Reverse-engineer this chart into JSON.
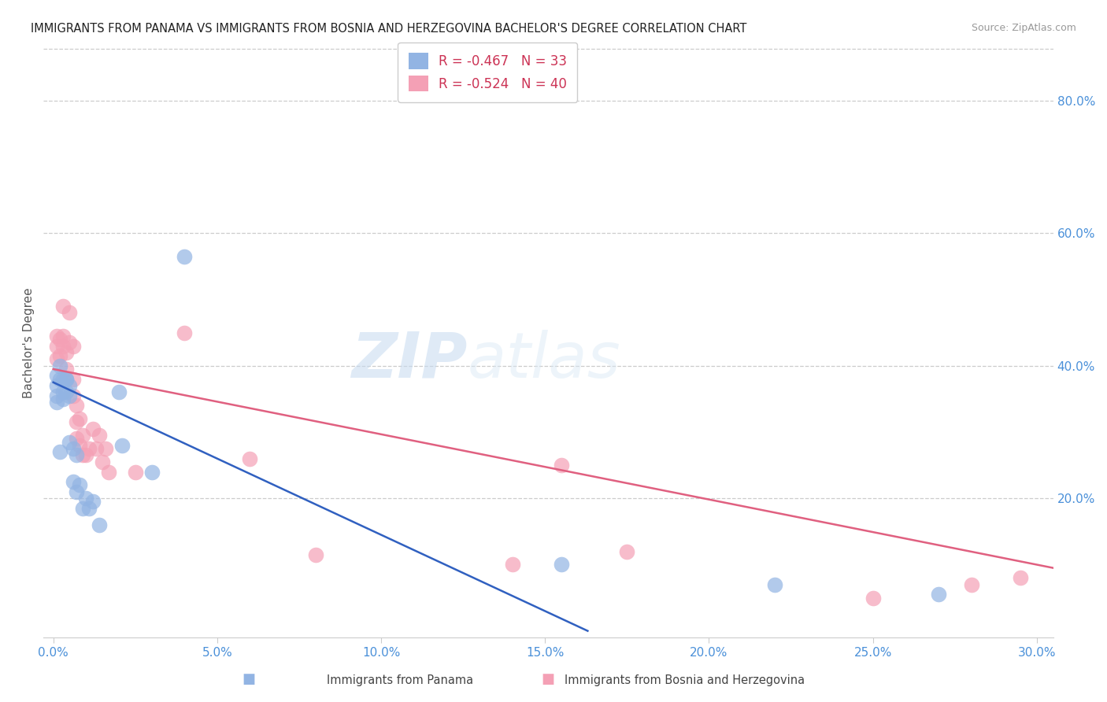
{
  "title": "IMMIGRANTS FROM PANAMA VS IMMIGRANTS FROM BOSNIA AND HERZEGOVINA BACHELOR'S DEGREE CORRELATION CHART",
  "source": "Source: ZipAtlas.com",
  "ylabel": "Bachelor's Degree",
  "right_ytick_labels": [
    "20.0%",
    "40.0%",
    "60.0%",
    "80.0%"
  ],
  "right_ytick_values": [
    0.2,
    0.4,
    0.6,
    0.8
  ],
  "bottom_xtick_labels": [
    "0.0%",
    "5.0%",
    "10.0%",
    "15.0%",
    "20.0%",
    "25.0%",
    "30.0%"
  ],
  "bottom_xtick_values": [
    0.0,
    0.05,
    0.1,
    0.15,
    0.2,
    0.25,
    0.3
  ],
  "xlim": [
    -0.003,
    0.305
  ],
  "ylim": [
    -0.01,
    0.88
  ],
  "panama_color": "#92b4e3",
  "bosnia_color": "#f4a0b5",
  "panama_line_color": "#3060c0",
  "bosnia_line_color": "#e06080",
  "panama_R": -0.467,
  "panama_N": 33,
  "bosnia_R": -0.524,
  "bosnia_N": 40,
  "watermark_zip": "ZIP",
  "watermark_atlas": "atlas",
  "legend_label_panama": "Immigrants from Panama",
  "legend_label_bosnia": "Immigrants from Bosnia and Herzegovina",
  "panama_x": [
    0.001,
    0.001,
    0.001,
    0.001,
    0.002,
    0.002,
    0.002,
    0.003,
    0.003,
    0.003,
    0.004,
    0.004,
    0.004,
    0.005,
    0.005,
    0.005,
    0.006,
    0.006,
    0.007,
    0.007,
    0.008,
    0.009,
    0.01,
    0.011,
    0.012,
    0.014,
    0.02,
    0.021,
    0.03,
    0.04,
    0.155,
    0.22,
    0.27
  ],
  "panama_y": [
    0.385,
    0.37,
    0.345,
    0.355,
    0.38,
    0.4,
    0.27,
    0.38,
    0.35,
    0.36,
    0.38,
    0.36,
    0.38,
    0.355,
    0.37,
    0.285,
    0.275,
    0.225,
    0.265,
    0.21,
    0.22,
    0.185,
    0.2,
    0.185,
    0.195,
    0.16,
    0.36,
    0.28,
    0.24,
    0.565,
    0.1,
    0.07,
    0.055
  ],
  "bosnia_x": [
    0.001,
    0.001,
    0.001,
    0.002,
    0.002,
    0.003,
    0.003,
    0.003,
    0.004,
    0.004,
    0.005,
    0.005,
    0.006,
    0.006,
    0.006,
    0.007,
    0.007,
    0.007,
    0.008,
    0.008,
    0.009,
    0.009,
    0.01,
    0.011,
    0.012,
    0.013,
    0.014,
    0.015,
    0.016,
    0.017,
    0.025,
    0.04,
    0.06,
    0.08,
    0.14,
    0.155,
    0.175,
    0.25,
    0.28,
    0.295
  ],
  "bosnia_y": [
    0.43,
    0.445,
    0.41,
    0.44,
    0.415,
    0.43,
    0.49,
    0.445,
    0.42,
    0.395,
    0.435,
    0.48,
    0.38,
    0.355,
    0.43,
    0.34,
    0.315,
    0.29,
    0.32,
    0.28,
    0.295,
    0.265,
    0.265,
    0.275,
    0.305,
    0.275,
    0.295,
    0.255,
    0.275,
    0.24,
    0.24,
    0.45,
    0.26,
    0.115,
    0.1,
    0.25,
    0.12,
    0.05,
    0.07,
    0.08
  ],
  "panama_line_x": [
    0.0,
    0.163
  ],
  "panama_line_y": [
    0.375,
    0.0
  ],
  "bosnia_line_x": [
    0.0,
    0.305
  ],
  "bosnia_line_y": [
    0.395,
    0.095
  ]
}
